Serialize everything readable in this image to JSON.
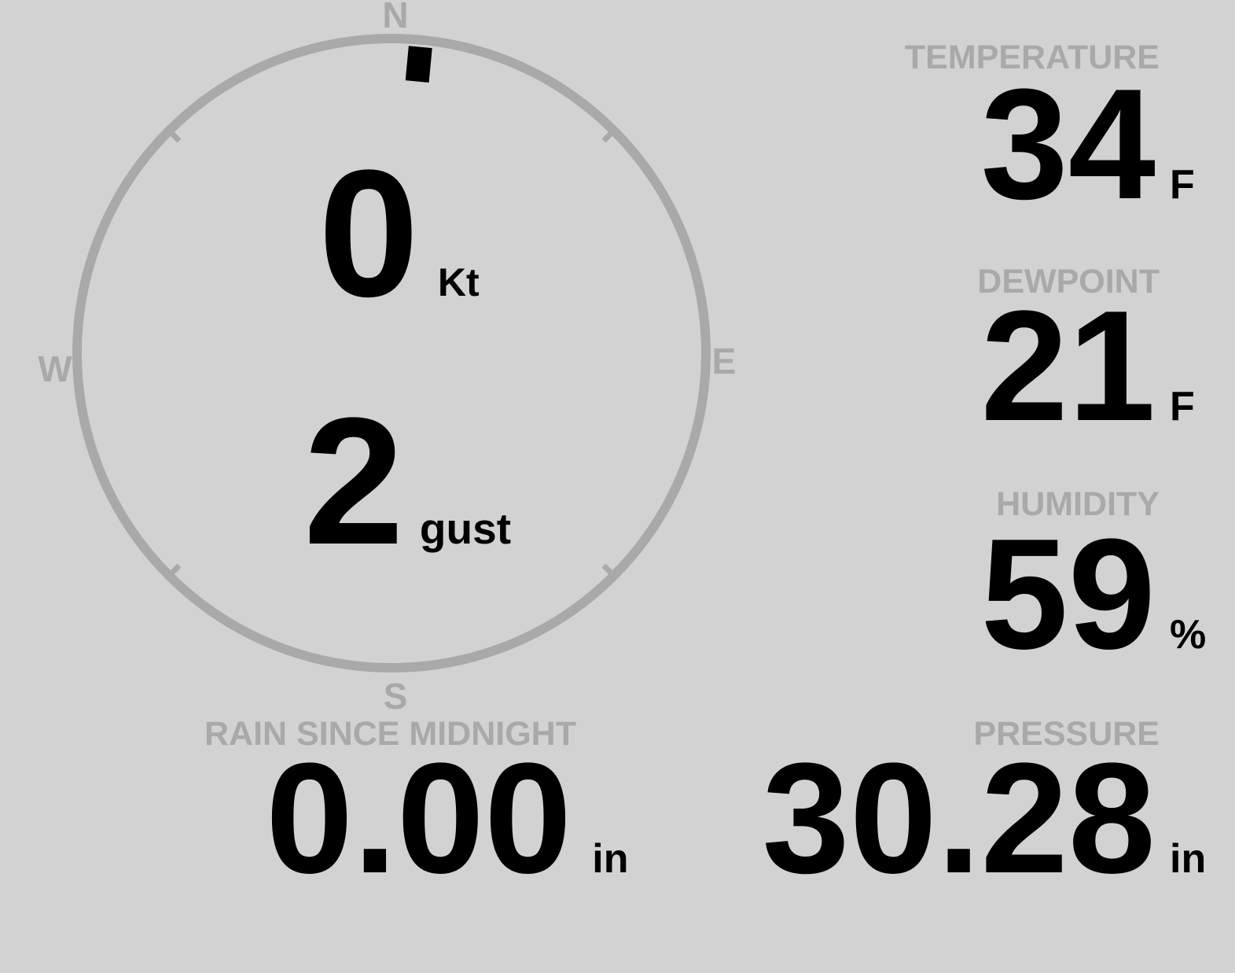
{
  "theme": {
    "background": "#d2d2d2",
    "muted": "#a9a9a9",
    "value_color": "#000000"
  },
  "compass": {
    "cardinals": {
      "north": "N",
      "east": "E",
      "south": "S",
      "west": "W"
    },
    "wind_speed": {
      "value": "0",
      "unit": "Kt"
    },
    "wind_gust": {
      "value": "2",
      "unit": "gust"
    },
    "direction_deg": 5.4
  },
  "metrics": {
    "temperature": {
      "label": "TEMPERATURE",
      "value": "34",
      "unit": "F"
    },
    "dewpoint": {
      "label": "DEWPOINT",
      "value": "21",
      "unit": "F"
    },
    "humidity": {
      "label": "HUMIDITY",
      "value": "59",
      "unit": "%"
    },
    "rain": {
      "label": "RAIN SINCE MIDNIGHT",
      "value": "0.00",
      "unit": "in"
    },
    "pressure": {
      "label": "PRESSURE",
      "value": "30.28",
      "unit": "in"
    }
  }
}
